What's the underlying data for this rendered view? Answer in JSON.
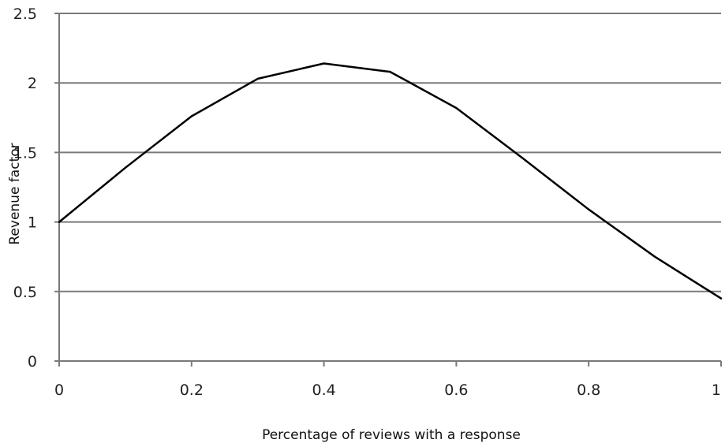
{
  "chart_data": {
    "type": "line",
    "title": "",
    "xlabel": "Percentage of reviews with a response",
    "ylabel": "Revenue factor",
    "xlim": [
      0,
      1
    ],
    "ylim": [
      0,
      2.5
    ],
    "x_ticks": [
      0,
      0.2,
      0.4,
      0.6,
      0.8,
      1
    ],
    "x_tick_labels": [
      "0",
      "0.2",
      "0.4",
      "0.6",
      "0.8",
      "1"
    ],
    "y_ticks": [
      0,
      0.5,
      1,
      1.5,
      2,
      2.5
    ],
    "y_tick_labels": [
      "0",
      "0.5",
      "1",
      "1.5",
      "2",
      "2.5"
    ],
    "grid": "horizontal",
    "legend": "none",
    "series": [
      {
        "color": "#000000",
        "x": [
          0,
          0.1,
          0.2,
          0.3,
          0.4,
          0.5,
          0.6,
          0.7,
          0.8,
          0.9,
          1.0
        ],
        "y": [
          1.0,
          1.39,
          1.76,
          2.03,
          2.14,
          2.08,
          1.82,
          1.46,
          1.09,
          0.75,
          0.45
        ]
      }
    ]
  },
  "colors": {
    "background": "#ffffff",
    "gridline": "#7a7a7a",
    "axis": "#7a7a7a",
    "line": "#000000",
    "text": "#222222"
  }
}
